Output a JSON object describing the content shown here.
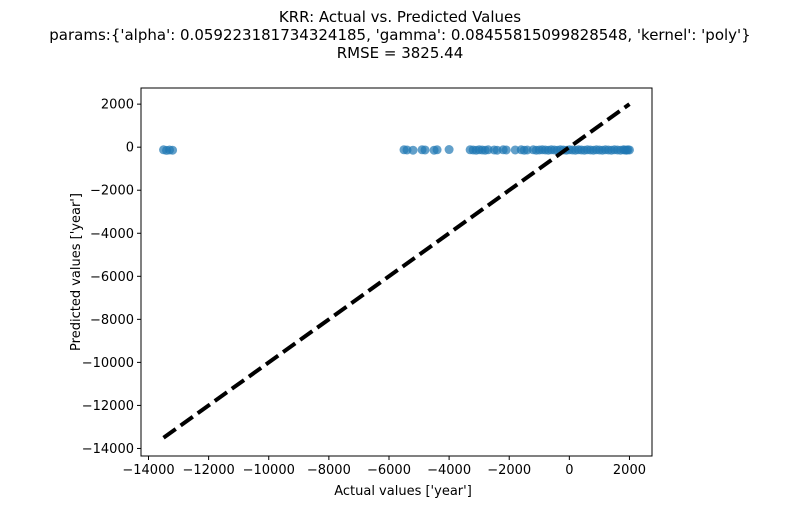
{
  "chart_data": {
    "type": "scatter",
    "title_lines": [
      "KRR: Actual vs. Predicted Values",
      "params:{'alpha': 0.059223181734324185, 'gamma': 0.08455815099828548, 'kernel': 'poly'}",
      "RMSE = 3825.44"
    ],
    "xlabel": "Actual values ['year']",
    "ylabel": "Predicted values ['year']",
    "xlim": [
      -14250,
      2750
    ],
    "ylim": [
      -14350,
      2750
    ],
    "xticks": [
      -14000,
      -12000,
      -10000,
      -8000,
      -6000,
      -4000,
      -2000,
      0,
      2000
    ],
    "xtick_labels": [
      "−14000",
      "−12000",
      "−10000",
      "−8000",
      "−6000",
      "−4000",
      "−2000",
      "0",
      "2000"
    ],
    "yticks": [
      2000,
      0,
      -2000,
      -4000,
      -6000,
      -8000,
      -10000,
      -12000,
      -14000
    ],
    "ytick_labels": [
      "2000",
      "0",
      "−2000",
      "−4000",
      "−6000",
      "−8000",
      "−10000",
      "−12000",
      "−14000"
    ],
    "series": [
      {
        "type": "scatter",
        "color": "#1f77b4",
        "alpha": 0.7,
        "x": [
          -13500,
          -13400,
          -13300,
          -13200,
          -5500,
          -5400,
          -5200,
          -4900,
          -4800,
          -4500,
          -4400,
          -4000,
          -3300,
          -3200,
          -3100,
          -3000,
          -2900,
          -2800,
          -2700,
          -2500,
          -2400,
          -2200,
          -2100,
          -1800,
          -1600,
          -1500,
          -1400,
          -1200,
          -1100,
          -1000,
          -900,
          -800,
          -700,
          -600,
          -500,
          -400,
          -300,
          -200,
          -100,
          0,
          100,
          200,
          300,
          400,
          500,
          600,
          700,
          800,
          900,
          1000,
          1100,
          1200,
          1300,
          1400,
          1500,
          1600,
          1700,
          1800,
          1850,
          1900,
          1950,
          2000
        ],
        "y": [
          -120,
          -150,
          -130,
          -140,
          -120,
          -130,
          -140,
          -120,
          -130,
          -140,
          -120,
          -110,
          -120,
          -130,
          -140,
          -120,
          -130,
          -140,
          -120,
          -130,
          -140,
          -120,
          -130,
          -130,
          -120,
          -140,
          -130,
          -120,
          -140,
          -130,
          -120,
          -130,
          -140,
          -120,
          -130,
          -140,
          -120,
          -130,
          -140,
          -120,
          -130,
          -140,
          -120,
          -130,
          -140,
          -120,
          -130,
          -140,
          -120,
          -130,
          -140,
          -120,
          -130,
          -140,
          -120,
          -130,
          -140,
          -120,
          -130,
          -140,
          -120,
          -130
        ]
      },
      {
        "type": "line",
        "style": "dashed",
        "color": "#000000",
        "x": [
          -13500,
          2000
        ],
        "y": [
          -13500,
          2000
        ]
      }
    ],
    "grid": false,
    "legend": "none"
  }
}
